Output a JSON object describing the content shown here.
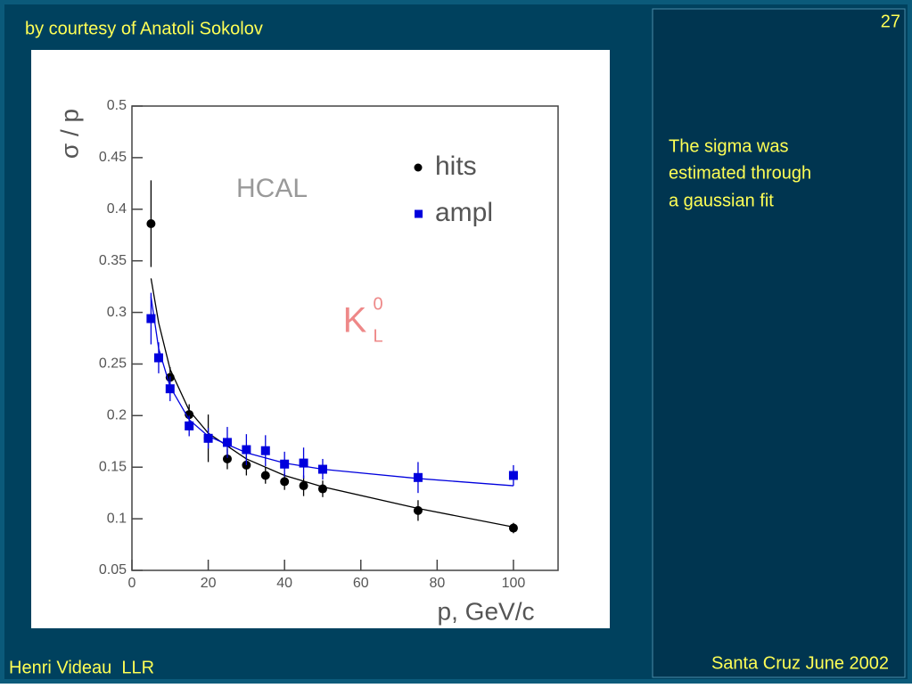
{
  "slide": {
    "credit": "by courtesy of Anatoli Sokolov",
    "page_number": "27",
    "side_note": [
      "The sigma was",
      "estimated through",
      "a gaussian fit"
    ],
    "footer_left": "Henri Videau  LLR",
    "footer_right": "Santa Cruz June 2002"
  },
  "chart_data": {
    "type": "scatter",
    "x_label": "p, GeV/c",
    "y_label": "σ / p",
    "annotation": "HCAL",
    "particle": {
      "base": "K",
      "sup": "0",
      "sub": "L"
    },
    "xlim": [
      0,
      111.7
    ],
    "ylim": [
      0.05,
      0.5
    ],
    "xticks": [
      0,
      20,
      40,
      60,
      80,
      100
    ],
    "yticks": [
      0.05,
      0.1,
      0.15,
      0.2,
      0.25,
      0.3,
      0.35,
      0.4,
      0.45,
      0.5
    ],
    "series": [
      {
        "name": "hits",
        "color": "#000000",
        "marker": "circle",
        "x": [
          5,
          10,
          15,
          20,
          25,
          30,
          35,
          40,
          45,
          50,
          75,
          100
        ],
        "values": [
          0.386,
          0.237,
          0.201,
          0.178,
          0.158,
          0.152,
          0.142,
          0.136,
          0.132,
          0.129,
          0.108,
          0.091
        ],
        "errors": [
          0.042,
          0.01,
          0.01,
          0.023,
          0.01,
          0.01,
          0.008,
          0.008,
          0.01,
          0.008,
          0.01,
          0.005
        ],
        "fit": {
          "x": [
            5,
            7,
            10,
            15,
            20,
            30,
            40,
            50,
            75,
            100
          ],
          "values": [
            0.333,
            0.29,
            0.245,
            0.205,
            0.183,
            0.158,
            0.142,
            0.131,
            0.11,
            0.092
          ]
        }
      },
      {
        "name": "ampl",
        "color": "#0000dd",
        "marker": "square",
        "x": [
          5,
          7,
          10,
          15,
          20,
          25,
          30,
          35,
          40,
          45,
          50,
          75,
          100
        ],
        "values": [
          0.294,
          0.256,
          0.226,
          0.19,
          0.178,
          0.174,
          0.167,
          0.166,
          0.153,
          0.154,
          0.148,
          0.14,
          0.142
        ],
        "errors": [
          0.025,
          0.015,
          0.012,
          0.01,
          0.01,
          0.015,
          0.015,
          0.015,
          0.012,
          0.015,
          0.01,
          0.015,
          0.01
        ],
        "fit": {
          "x": [
            5,
            7,
            10,
            15,
            20,
            30,
            40,
            50,
            75,
            100
          ],
          "values": [
            0.315,
            0.265,
            0.228,
            0.196,
            0.18,
            0.164,
            0.154,
            0.148,
            0.139,
            0.132
          ]
        }
      }
    ]
  }
}
